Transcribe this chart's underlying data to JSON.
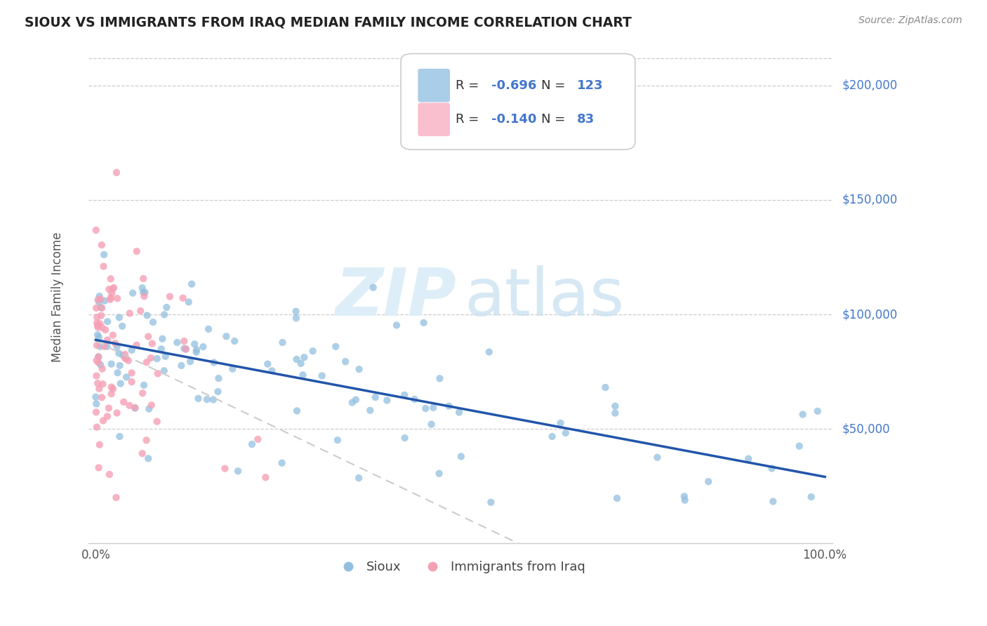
{
  "title": "SIOUX VS IMMIGRANTS FROM IRAQ MEDIAN FAMILY INCOME CORRELATION CHART",
  "source": "Source: ZipAtlas.com",
  "ylabel": "Median Family Income",
  "ytick_labels": [
    "$50,000",
    "$100,000",
    "$150,000",
    "$200,000"
  ],
  "ytick_values": [
    50000,
    100000,
    150000,
    200000
  ],
  "ymin": 0,
  "ymax": 215000,
  "xmin": -0.01,
  "xmax": 1.01,
  "sioux_color": "#92bfdf",
  "iraq_color": "#f5a0b5",
  "sioux_legend_color": "#aacde8",
  "iraq_legend_color": "#f9bfcf",
  "sioux_line_color": "#2255aa",
  "dashed_line_color": "#cccccc",
  "title_color": "#222222",
  "source_color": "#888888",
  "ylabel_color": "#555555",
  "tick_color": "#555555",
  "grid_color": "#cccccc",
  "legend_R1": "-0.696",
  "legend_N1": "123",
  "legend_R2": "-0.140",
  "legend_N2": "83",
  "legend_text_color": "#333333",
  "legend_value_color": "#4477cc",
  "watermark_zip_color": "#ddeef8",
  "watermark_atlas_color": "#c5dff0",
  "bottom_legend_labels": [
    "Sioux",
    "Immigrants from Iraq"
  ]
}
